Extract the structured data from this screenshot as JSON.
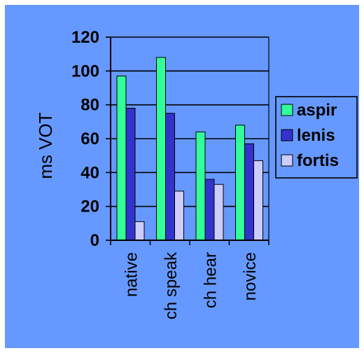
{
  "chart_data": {
    "type": "bar",
    "title": "",
    "xlabel": "",
    "ylabel": "ms VOT",
    "categories": [
      "native",
      "ch speak",
      "ch hear",
      "novice"
    ],
    "series": [
      {
        "name": "aspir",
        "values": [
          97,
          108,
          64,
          68
        ],
        "color": "#33ff99"
      },
      {
        "name": "lenis",
        "values": [
          78,
          75,
          36,
          57
        ],
        "color": "#3333cc"
      },
      {
        "name": "fortis",
        "values": [
          11,
          29,
          33,
          47
        ],
        "color": "#ccccff"
      }
    ],
    "ylim": [
      0,
      120
    ],
    "yticks": [
      "0",
      "20",
      "40",
      "60",
      "80",
      "100",
      "120"
    ],
    "grid": true,
    "legend_position": "right",
    "colors": {
      "background": "#6699ff",
      "page_border": "#ffffff",
      "axis": "#000000",
      "text": "#000000"
    }
  }
}
